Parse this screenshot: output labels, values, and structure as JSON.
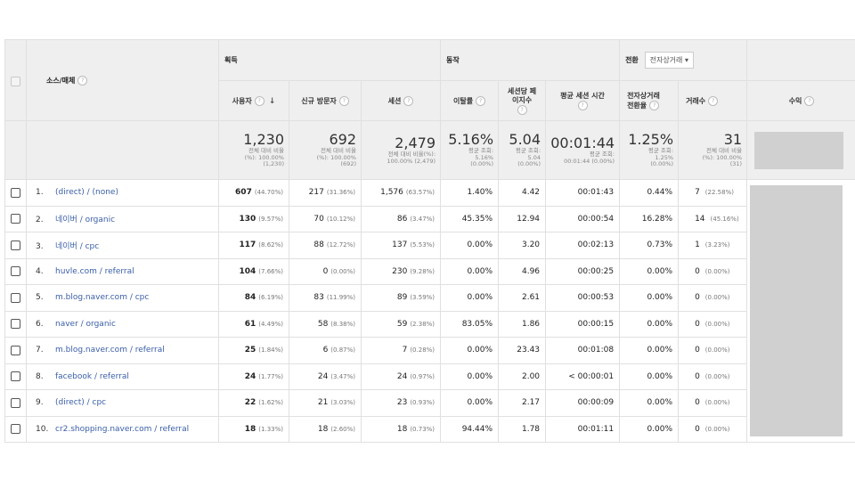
{
  "header": {
    "source_medium": "소스/매체",
    "groups": {
      "acquisition": "획득",
      "behavior": "동작",
      "conversion": "전환"
    },
    "conversion_select": "전자상거래",
    "metrics": {
      "users": "사용자",
      "new_users": "신규 방문자",
      "sessions": "세션",
      "bounce_rate": "이탈률",
      "pages_per_session_line1": "세션당 페",
      "pages_per_session_line2": "이지수",
      "avg_session_duration": "평균 세션 시간",
      "ecommerce_rate_line1": "전자상거래",
      "ecommerce_rate_line2": "전환율",
      "transactions": "거래수",
      "revenue": "수익"
    },
    "help_icon": "question-circle-icon",
    "sort_icon": "arrow-down-icon"
  },
  "totals": {
    "users": {
      "value": "1,230",
      "sub1": "전체 대비 비율",
      "sub2": "(%): 100.00%",
      "sub3": "(1,230)"
    },
    "new_users": {
      "value": "692",
      "sub1": "전체 대비 비율",
      "sub2": "(%): 100.00%",
      "sub3": "(692)"
    },
    "sessions": {
      "value": "2,479",
      "sub1": "전체 대비 비율(%):",
      "sub2": "100.00% (2,479)",
      "sub3": ""
    },
    "bounce_rate": {
      "value": "5.16%",
      "sub1": "평균 조회:",
      "sub2": "5.16%",
      "sub3": "(0.00%)"
    },
    "pages_per_session": {
      "value": "5.04",
      "sub1": "평균 조회:",
      "sub2": "5.04",
      "sub3": "(0.00%)"
    },
    "avg_session_duration": {
      "value": "00:01:44",
      "sub1": "평균 조회:",
      "sub2": "00:01:44 (0.00%)",
      "sub3": ""
    },
    "ecommerce_rate": {
      "value": "1.25%",
      "sub1": "평균 조회:",
      "sub2": "1.25%",
      "sub3": "(0.00%)"
    },
    "transactions": {
      "value": "31",
      "sub1": "전체 대비 비율",
      "sub2": "(%): 100.00%",
      "sub3": "(31)"
    }
  },
  "rows": [
    {
      "idx": "1.",
      "source": "(direct) / (none)",
      "users": "607",
      "users_pct": "(44.70%)",
      "new_users": "217",
      "new_users_pct": "(31.36%)",
      "sessions": "1,576",
      "sessions_pct": "(63.57%)",
      "bounce": "1.40%",
      "pps": "4.42",
      "dur": "00:01:43",
      "ecr": "0.44%",
      "tx": "7",
      "tx_pct": "(22.58%)"
    },
    {
      "idx": "2.",
      "source": "네이버 / organic",
      "users": "130",
      "users_pct": "(9.57%)",
      "new_users": "70",
      "new_users_pct": "(10.12%)",
      "sessions": "86",
      "sessions_pct": "(3.47%)",
      "bounce": "45.35%",
      "pps": "12.94",
      "dur": "00:00:54",
      "ecr": "16.28%",
      "tx": "14",
      "tx_pct": "(45.16%)"
    },
    {
      "idx": "3.",
      "source": "네이버 / cpc",
      "users": "117",
      "users_pct": "(8.62%)",
      "new_users": "88",
      "new_users_pct": "(12.72%)",
      "sessions": "137",
      "sessions_pct": "(5.53%)",
      "bounce": "0.00%",
      "pps": "3.20",
      "dur": "00:02:13",
      "ecr": "0.73%",
      "tx": "1",
      "tx_pct": "(3.23%)"
    },
    {
      "idx": "4.",
      "source": "huvle.com / referral",
      "users": "104",
      "users_pct": "(7.66%)",
      "new_users": "0",
      "new_users_pct": "(0.00%)",
      "sessions": "230",
      "sessions_pct": "(9.28%)",
      "bounce": "0.00%",
      "pps": "4.96",
      "dur": "00:00:25",
      "ecr": "0.00%",
      "tx": "0",
      "tx_pct": "(0.00%)"
    },
    {
      "idx": "5.",
      "source": "m.blog.naver.com / cpc",
      "users": "84",
      "users_pct": "(6.19%)",
      "new_users": "83",
      "new_users_pct": "(11.99%)",
      "sessions": "89",
      "sessions_pct": "(3.59%)",
      "bounce": "0.00%",
      "pps": "2.61",
      "dur": "00:00:53",
      "ecr": "0.00%",
      "tx": "0",
      "tx_pct": "(0.00%)"
    },
    {
      "idx": "6.",
      "source": "naver / organic",
      "users": "61",
      "users_pct": "(4.49%)",
      "new_users": "58",
      "new_users_pct": "(8.38%)",
      "sessions": "59",
      "sessions_pct": "(2.38%)",
      "bounce": "83.05%",
      "pps": "1.86",
      "dur": "00:00:15",
      "ecr": "0.00%",
      "tx": "0",
      "tx_pct": "(0.00%)"
    },
    {
      "idx": "7.",
      "source": "m.blog.naver.com / referral",
      "users": "25",
      "users_pct": "(1.84%)",
      "new_users": "6",
      "new_users_pct": "(0.87%)",
      "sessions": "7",
      "sessions_pct": "(0.28%)",
      "bounce": "0.00%",
      "pps": "23.43",
      "dur": "00:01:08",
      "ecr": "0.00%",
      "tx": "0",
      "tx_pct": "(0.00%)"
    },
    {
      "idx": "8.",
      "source": "facebook / referral",
      "users": "24",
      "users_pct": "(1.77%)",
      "new_users": "24",
      "new_users_pct": "(3.47%)",
      "sessions": "24",
      "sessions_pct": "(0.97%)",
      "bounce": "0.00%",
      "pps": "2.00",
      "dur": "< 00:00:01",
      "ecr": "0.00%",
      "tx": "0",
      "tx_pct": "(0.00%)"
    },
    {
      "idx": "9.",
      "source": "(direct) / cpc",
      "users": "22",
      "users_pct": "(1.62%)",
      "new_users": "21",
      "new_users_pct": "(3.03%)",
      "sessions": "23",
      "sessions_pct": "(0.93%)",
      "bounce": "0.00%",
      "pps": "2.17",
      "dur": "00:00:09",
      "ecr": "0.00%",
      "tx": "0",
      "tx_pct": "(0.00%)"
    },
    {
      "idx": "10.",
      "source": "cr2.shopping.naver.com / referral",
      "users": "18",
      "users_pct": "(1.33%)",
      "new_users": "18",
      "new_users_pct": "(2.60%)",
      "sessions": "18",
      "sessions_pct": "(0.73%)",
      "bounce": "94.44%",
      "pps": "1.78",
      "dur": "00:01:11",
      "ecr": "0.00%",
      "tx": "0",
      "tx_pct": "(0.00%)"
    }
  ]
}
